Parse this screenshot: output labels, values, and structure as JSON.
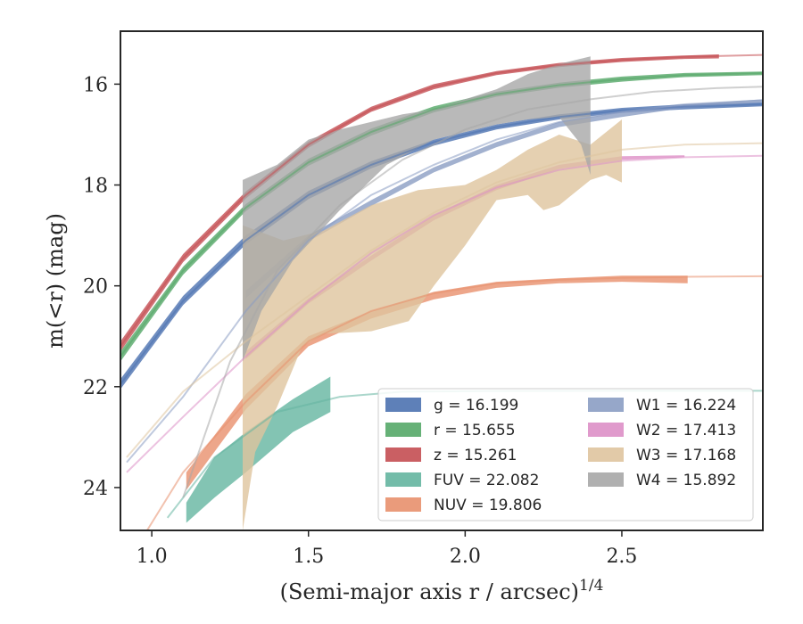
{
  "chart_data": {
    "type": "line",
    "xlabel": "(Semi-major axis r / arcsec)",
    "xlabel_exponent": "1/4",
    "ylabel": "m(<r) (mag)",
    "xlim": [
      0.9,
      2.95
    ],
    "ylim": [
      24.85,
      14.95
    ],
    "y_inverted": true,
    "x_ticks": [
      1.0,
      1.5,
      2.0,
      2.5
    ],
    "x_tick_labels": [
      "1.0",
      "1.5",
      "2.0",
      "2.5"
    ],
    "y_ticks": [
      16,
      18,
      20,
      22,
      24
    ],
    "y_tick_labels": [
      "16",
      "18",
      "20",
      "22",
      "24"
    ],
    "legend_position": "lower-right",
    "series": [
      {
        "name": "g = 16.199",
        "band": "g",
        "value": "16.199",
        "color": "#4c72b0",
        "model": [
          [
            0.9,
            21.95
          ],
          [
            1.1,
            20.3
          ],
          [
            1.3,
            19.1
          ],
          [
            1.5,
            18.2
          ],
          [
            1.7,
            17.6
          ],
          [
            1.9,
            17.15
          ],
          [
            2.1,
            16.85
          ],
          [
            2.3,
            16.65
          ],
          [
            2.5,
            16.52
          ],
          [
            2.7,
            16.45
          ],
          [
            2.95,
            16.4
          ]
        ],
        "band_upper": [
          [
            0.9,
            21.85
          ],
          [
            1.1,
            20.2
          ],
          [
            1.3,
            19.0
          ],
          [
            1.5,
            18.12
          ],
          [
            1.7,
            17.53
          ],
          [
            1.9,
            17.1
          ],
          [
            2.1,
            16.8
          ],
          [
            2.3,
            16.6
          ],
          [
            2.5,
            16.47
          ],
          [
            2.7,
            16.4
          ],
          [
            2.95,
            16.36
          ]
        ],
        "band_lower": [
          [
            0.9,
            22.05
          ],
          [
            1.1,
            20.38
          ],
          [
            1.3,
            19.18
          ],
          [
            1.5,
            18.28
          ],
          [
            1.7,
            17.67
          ],
          [
            1.9,
            17.22
          ],
          [
            2.1,
            16.9
          ],
          [
            2.3,
            16.7
          ],
          [
            2.5,
            16.57
          ],
          [
            2.7,
            16.5
          ],
          [
            2.95,
            16.44
          ]
        ]
      },
      {
        "name": "r = 15.655",
        "band": "r",
        "value": "15.655",
        "color": "#55a868",
        "model": [
          [
            0.9,
            21.4
          ],
          [
            1.1,
            19.7
          ],
          [
            1.3,
            18.45
          ],
          [
            1.5,
            17.55
          ],
          [
            1.7,
            16.95
          ],
          [
            1.9,
            16.5
          ],
          [
            2.1,
            16.2
          ],
          [
            2.3,
            16.02
          ],
          [
            2.5,
            15.9
          ],
          [
            2.7,
            15.82
          ],
          [
            2.95,
            15.78
          ]
        ],
        "band_upper": [
          [
            0.9,
            21.3
          ],
          [
            1.1,
            19.62
          ],
          [
            1.3,
            18.38
          ],
          [
            1.5,
            17.48
          ],
          [
            1.7,
            16.88
          ],
          [
            1.9,
            16.44
          ],
          [
            2.1,
            16.15
          ],
          [
            2.3,
            15.97
          ],
          [
            2.5,
            15.85
          ],
          [
            2.7,
            15.78
          ],
          [
            2.95,
            15.75
          ]
        ],
        "band_lower": [
          [
            0.9,
            21.5
          ],
          [
            1.1,
            19.78
          ],
          [
            1.3,
            18.52
          ],
          [
            1.5,
            17.62
          ],
          [
            1.7,
            17.02
          ],
          [
            1.9,
            16.56
          ],
          [
            2.1,
            16.25
          ],
          [
            2.3,
            16.07
          ],
          [
            2.5,
            15.95
          ],
          [
            2.7,
            15.86
          ],
          [
            2.95,
            15.82
          ]
        ]
      },
      {
        "name": "z = 15.261",
        "band": "z",
        "value": "15.261",
        "color": "#c44e52",
        "model": [
          [
            0.9,
            21.2
          ],
          [
            1.1,
            19.45
          ],
          [
            1.3,
            18.2
          ],
          [
            1.5,
            17.2
          ],
          [
            1.7,
            16.5
          ],
          [
            1.9,
            16.05
          ],
          [
            2.1,
            15.78
          ],
          [
            2.3,
            15.62
          ],
          [
            2.5,
            15.52
          ],
          [
            2.7,
            15.46
          ],
          [
            2.95,
            15.42
          ]
        ],
        "band_upper": [
          [
            0.9,
            21.1
          ],
          [
            1.1,
            19.37
          ],
          [
            1.3,
            18.13
          ],
          [
            1.5,
            17.14
          ],
          [
            1.7,
            16.45
          ],
          [
            1.9,
            16.0
          ],
          [
            2.1,
            15.74
          ],
          [
            2.3,
            15.58
          ],
          [
            2.5,
            15.48
          ],
          [
            2.7,
            15.43
          ],
          [
            2.81,
            15.41
          ]
        ],
        "band_lower": [
          [
            0.9,
            21.3
          ],
          [
            1.1,
            19.53
          ],
          [
            1.3,
            18.27
          ],
          [
            1.5,
            17.26
          ],
          [
            1.7,
            16.55
          ],
          [
            1.9,
            16.1
          ],
          [
            2.1,
            15.82
          ],
          [
            2.3,
            15.66
          ],
          [
            2.5,
            15.56
          ],
          [
            2.7,
            15.5
          ],
          [
            2.81,
            15.49
          ]
        ]
      },
      {
        "name": "FUV = 22.082",
        "band": "FUV",
        "value": "22.082",
        "color": "#64b5a0",
        "model": [
          [
            1.05,
            24.6
          ],
          [
            1.2,
            23.4
          ],
          [
            1.4,
            22.5
          ],
          [
            1.6,
            22.2
          ],
          [
            1.8,
            22.1
          ],
          [
            2.1,
            22.085
          ],
          [
            2.5,
            22.082
          ],
          [
            2.95,
            22.082
          ]
        ],
        "band_upper": [
          [
            1.11,
            24.3
          ],
          [
            1.2,
            23.4
          ],
          [
            1.3,
            22.9
          ],
          [
            1.45,
            22.25
          ],
          [
            1.57,
            21.8
          ]
        ],
        "band_lower": [
          [
            1.11,
            24.7
          ],
          [
            1.2,
            24.2
          ],
          [
            1.3,
            23.7
          ],
          [
            1.45,
            22.9
          ],
          [
            1.57,
            22.5
          ]
        ]
      },
      {
        "name": "NUV = 19.806",
        "band": "NUV",
        "value": "19.806",
        "color": "#e8906d",
        "model": [
          [
            0.95,
            25.2
          ],
          [
            1.1,
            23.7
          ],
          [
            1.3,
            22.3
          ],
          [
            1.5,
            21.1
          ],
          [
            1.7,
            20.5
          ],
          [
            1.9,
            20.15
          ],
          [
            2.1,
            19.95
          ],
          [
            2.3,
            19.88
          ],
          [
            2.5,
            19.84
          ],
          [
            2.7,
            19.82
          ],
          [
            2.95,
            19.81
          ]
        ],
        "band_upper": [
          [
            1.11,
            23.7
          ],
          [
            1.3,
            22.15
          ],
          [
            1.5,
            21.0
          ],
          [
            1.7,
            20.5
          ],
          [
            1.9,
            20.12
          ],
          [
            2.1,
            19.92
          ],
          [
            2.3,
            19.85
          ],
          [
            2.5,
            19.8
          ],
          [
            2.71,
            19.8
          ]
        ],
        "band_lower": [
          [
            1.11,
            24.05
          ],
          [
            1.3,
            22.45
          ],
          [
            1.5,
            21.2
          ],
          [
            1.7,
            20.65
          ],
          [
            1.9,
            20.27
          ],
          [
            2.1,
            20.04
          ],
          [
            2.3,
            19.95
          ],
          [
            2.5,
            19.92
          ],
          [
            2.71,
            19.95
          ]
        ]
      },
      {
        "name": "W1 = 16.224",
        "band": "W1",
        "value": "16.224",
        "color": "#8b9dc3",
        "model": [
          [
            0.92,
            23.5
          ],
          [
            1.1,
            22.2
          ],
          [
            1.3,
            20.5
          ],
          [
            1.5,
            19.1
          ],
          [
            1.7,
            18.2
          ],
          [
            1.9,
            17.6
          ],
          [
            2.1,
            17.1
          ],
          [
            2.3,
            16.75
          ],
          [
            2.5,
            16.55
          ],
          [
            2.7,
            16.4
          ],
          [
            2.95,
            16.32
          ]
        ],
        "band_upper": [
          [
            1.3,
            20.1
          ],
          [
            1.5,
            19.0
          ],
          [
            1.7,
            18.3
          ],
          [
            1.9,
            17.65
          ],
          [
            2.1,
            17.15
          ],
          [
            2.3,
            16.75
          ],
          [
            2.5,
            16.55
          ],
          [
            2.7,
            16.4
          ],
          [
            2.95,
            16.3
          ]
        ],
        "band_lower": [
          [
            1.3,
            20.25
          ],
          [
            1.5,
            19.12
          ],
          [
            1.7,
            18.42
          ],
          [
            1.9,
            17.75
          ],
          [
            2.1,
            17.25
          ],
          [
            2.3,
            16.85
          ],
          [
            2.5,
            16.65
          ],
          [
            2.7,
            16.47
          ],
          [
            2.95,
            16.36
          ]
        ]
      },
      {
        "name": "W2 = 17.413",
        "band": "W2",
        "value": "17.413",
        "color": "#dd8fc6",
        "model": [
          [
            0.92,
            23.7
          ],
          [
            1.1,
            22.6
          ],
          [
            1.3,
            21.4
          ],
          [
            1.5,
            20.3
          ],
          [
            1.7,
            19.35
          ],
          [
            1.9,
            18.6
          ],
          [
            2.1,
            18.05
          ],
          [
            2.3,
            17.7
          ],
          [
            2.5,
            17.52
          ],
          [
            2.7,
            17.45
          ],
          [
            2.95,
            17.42
          ]
        ],
        "band_upper": [
          [
            1.3,
            21.3
          ],
          [
            1.5,
            20.25
          ],
          [
            1.7,
            19.4
          ],
          [
            1.9,
            18.6
          ],
          [
            2.1,
            18.0
          ],
          [
            2.3,
            17.6
          ],
          [
            2.5,
            17.43
          ],
          [
            2.7,
            17.41
          ]
        ],
        "band_lower": [
          [
            1.3,
            21.45
          ],
          [
            1.5,
            20.35
          ],
          [
            1.7,
            19.5
          ],
          [
            1.9,
            18.7
          ],
          [
            2.1,
            18.1
          ],
          [
            2.3,
            17.68
          ],
          [
            2.5,
            17.5
          ],
          [
            2.7,
            17.45
          ]
        ]
      },
      {
        "name": "W3 = 17.168",
        "band": "W3",
        "value": "17.168",
        "color": "#dfc49e",
        "model": [
          [
            0.92,
            23.4
          ],
          [
            1.1,
            22.1
          ],
          [
            1.3,
            21.1
          ],
          [
            1.5,
            20.2
          ],
          [
            1.7,
            19.3
          ],
          [
            1.9,
            18.55
          ],
          [
            2.1,
            17.95
          ],
          [
            2.3,
            17.55
          ],
          [
            2.5,
            17.3
          ],
          [
            2.7,
            17.2
          ],
          [
            2.95,
            17.17
          ]
        ],
        "band_upper": [
          [
            1.29,
            18.8
          ],
          [
            1.42,
            19.1
          ],
          [
            1.55,
            18.9
          ],
          [
            1.7,
            18.4
          ],
          [
            1.85,
            18.1
          ],
          [
            2.0,
            18.0
          ],
          [
            2.1,
            17.7
          ],
          [
            2.2,
            17.3
          ],
          [
            2.3,
            17.0
          ],
          [
            2.4,
            17.2
          ],
          [
            2.5,
            16.7
          ]
        ],
        "band_lower": [
          [
            1.29,
            24.85
          ],
          [
            1.33,
            23.3
          ],
          [
            1.4,
            22.4
          ],
          [
            1.48,
            21.2
          ],
          [
            1.55,
            20.95
          ],
          [
            1.7,
            20.9
          ],
          [
            1.82,
            20.7
          ],
          [
            1.9,
            20.0
          ],
          [
            2.0,
            19.2
          ],
          [
            2.1,
            18.3
          ],
          [
            2.2,
            18.2
          ],
          [
            2.25,
            18.5
          ],
          [
            2.3,
            18.4
          ],
          [
            2.4,
            17.9
          ],
          [
            2.45,
            17.8
          ],
          [
            2.5,
            17.95
          ]
        ]
      },
      {
        "name": "W4 = 15.892",
        "band": "W4",
        "value": "15.892",
        "color": "#a7a7a7",
        "model": [
          [
            1.1,
            24.2
          ],
          [
            1.25,
            21.5
          ],
          [
            1.4,
            19.7
          ],
          [
            1.6,
            18.4
          ],
          [
            1.8,
            17.5
          ],
          [
            2.0,
            16.9
          ],
          [
            2.2,
            16.5
          ],
          [
            2.4,
            16.3
          ],
          [
            2.6,
            16.15
          ],
          [
            2.8,
            16.08
          ],
          [
            2.95,
            16.05
          ]
        ],
        "band_upper": [
          [
            1.29,
            17.9
          ],
          [
            1.4,
            17.6
          ],
          [
            1.5,
            17.1
          ],
          [
            1.6,
            16.9
          ],
          [
            1.8,
            16.6
          ],
          [
            1.9,
            16.5
          ],
          [
            2.0,
            16.3
          ],
          [
            2.1,
            16.1
          ],
          [
            2.2,
            15.8
          ],
          [
            2.3,
            15.6
          ],
          [
            2.4,
            15.45
          ]
        ],
        "band_lower": [
          [
            1.29,
            21.5
          ],
          [
            1.35,
            20.5
          ],
          [
            1.45,
            19.5
          ],
          [
            1.6,
            18.5
          ],
          [
            1.75,
            17.6
          ],
          [
            1.9,
            17.1
          ],
          [
            2.1,
            16.8
          ],
          [
            2.2,
            16.7
          ],
          [
            2.3,
            16.65
          ],
          [
            2.37,
            17.2
          ],
          [
            2.4,
            17.8
          ]
        ]
      }
    ]
  }
}
